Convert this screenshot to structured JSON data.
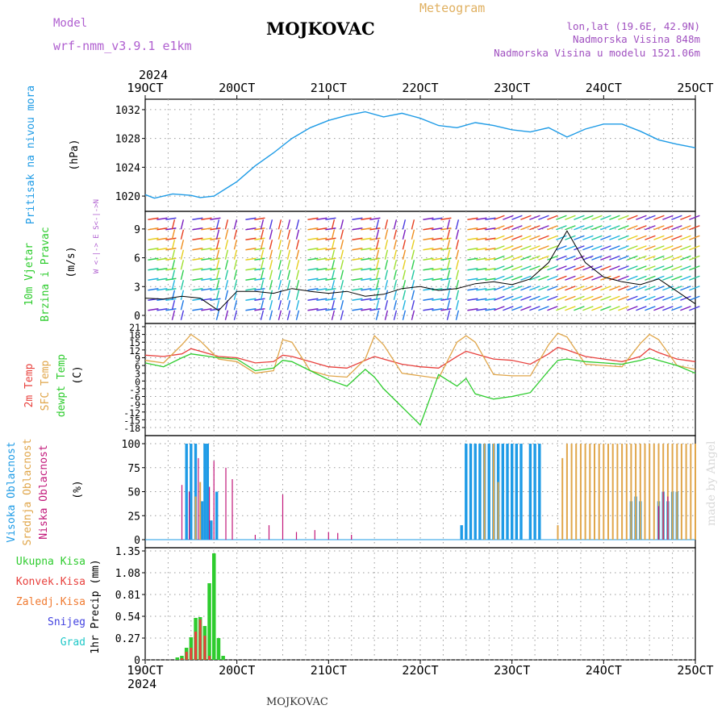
{
  "header": {
    "model_label": "Model",
    "model_value": "wrf-nmm_v3.9.1 e1km",
    "station": "MOJKOVAC",
    "subtitle": "Meteogram",
    "coords": "lon,lat (19.6E, 42.9N)",
    "altitude": "Nadmorska Visina 848m",
    "model_altitude": "Nadmorska Visina u modelu 1521.06m",
    "footer_station": "MOJKOVAC",
    "watermark": "made by Angel",
    "year_top": "2024",
    "year_bottom": "2024"
  },
  "time_axis": {
    "labels": [
      "19OCT",
      "20OCT",
      "21OCT",
      "22OCT",
      "23OCT",
      "24OCT",
      "25OCT"
    ],
    "range_days": [
      0,
      6
    ]
  },
  "colors": {
    "pressure": "#1e9be6",
    "temp2m": "#e8403c",
    "sfc": "#e0a64a",
    "dewpt": "#2ecc2e",
    "high_cloud": "#1e9be6",
    "mid_cloud": "#e0a64a",
    "low_cloud": "#c2177a",
    "rain": "#2ecc2e",
    "conv": "#e8403c",
    "frz": "#f07a30",
    "snow": "#4040e0",
    "hail": "#20c8c8",
    "model_label": "#b060d0",
    "header_right": "#a050c0"
  },
  "chart_data": [
    {
      "type": "line",
      "panel": "pressure",
      "ylabel_a": "Pritisak na nivou mora",
      "ylabel_b": "(hPa)",
      "yticks": [
        1020,
        1024,
        1028,
        1032
      ],
      "ylim": [
        1019,
        1033
      ],
      "series": [
        {
          "x": [
            0,
            0.1,
            0.3,
            0.5,
            0.6,
            0.75,
            0.9,
            1.0,
            1.2,
            1.4,
            1.6,
            1.8,
            2.0,
            2.2,
            2.4,
            2.6,
            2.8,
            3.0,
            3.2,
            3.4,
            3.6,
            3.8,
            4.0,
            4.2,
            4.4,
            4.6,
            4.8,
            5.0,
            5.2,
            5.4,
            5.6,
            5.8,
            6.0
          ],
          "values": [
            1020.2,
            1019.7,
            1020.3,
            1020.1,
            1019.8,
            1020.0,
            1021.2,
            1022.0,
            1024.2,
            1026.0,
            1028.0,
            1029.5,
            1030.5,
            1031.2,
            1031.7,
            1031.0,
            1031.5,
            1030.8,
            1029.8,
            1029.5,
            1030.2,
            1029.8,
            1029.2,
            1028.9,
            1029.5,
            1028.2,
            1029.3,
            1030.0,
            1030.0,
            1029.0,
            1027.8,
            1027.2,
            1026.7
          ]
        }
      ]
    },
    {
      "type": "line",
      "panel": "wind",
      "ylabel_a": "10m Vjetar",
      "ylabel_b": "Brzina i Pravac",
      "ylabel_c": "(m/s)",
      "compass": "W <-|-> E  S<-|->N",
      "yticks": [
        0,
        3,
        6,
        9
      ],
      "ylim": [
        0,
        10.5
      ],
      "series": [
        {
          "x": [
            0,
            0.2,
            0.4,
            0.6,
            0.8,
            1.0,
            1.2,
            1.4,
            1.6,
            1.8,
            2.0,
            2.2,
            2.4,
            2.6,
            2.8,
            3.0,
            3.2,
            3.4,
            3.6,
            3.8,
            4.0,
            4.2,
            4.4,
            4.6,
            4.8,
            5.0,
            5.2,
            5.4,
            5.6,
            5.8,
            6.0
          ],
          "values": [
            1.8,
            1.7,
            2.0,
            1.8,
            0.5,
            2.5,
            2.5,
            2.3,
            2.8,
            2.5,
            2.3,
            2.5,
            2.0,
            2.2,
            2.8,
            3.0,
            2.6,
            2.8,
            3.3,
            3.5,
            3.2,
            3.8,
            5.5,
            8.8,
            5.5,
            4.0,
            3.5,
            3.2,
            3.8,
            2.5,
            1.2
          ]
        }
      ]
    },
    {
      "type": "line",
      "panel": "temperature",
      "ylabel_a": "2m Temp",
      "ylabel_b": "SFC Temp",
      "ylabel_c": "dewpt Temp",
      "ylabel_d": "(C)",
      "yticks": [
        -18,
        -15,
        -12,
        -9,
        -6,
        -3,
        0,
        3,
        6,
        9,
        12,
        15,
        18,
        21
      ],
      "ylim": [
        -18,
        21
      ],
      "x": [
        0,
        0.2,
        0.4,
        0.5,
        0.6,
        0.8,
        1.0,
        1.2,
        1.4,
        1.5,
        1.6,
        1.8,
        2.0,
        2.2,
        2.4,
        2.5,
        2.6,
        2.8,
        3.0,
        3.2,
        3.4,
        3.5,
        3.6,
        3.8,
        4.0,
        4.2,
        4.4,
        4.5,
        4.6,
        4.8,
        5.0,
        5.2,
        5.4,
        5.5,
        5.6,
        5.8,
        6.0
      ],
      "series": [
        {
          "name": "2m Temp",
          "values": [
            10,
            9.5,
            10.5,
            12.5,
            11.5,
            9.5,
            9.0,
            7.0,
            7.5,
            10.0,
            9.5,
            7.5,
            5.5,
            5.0,
            8.0,
            9.5,
            8.5,
            6.5,
            5.5,
            5.0,
            9.5,
            11.5,
            10.5,
            8.5,
            8.0,
            6.5,
            10.5,
            13.0,
            12.0,
            9.5,
            8.5,
            7.5,
            9.5,
            12.5,
            11.0,
            8.5,
            7.5
          ]
        },
        {
          "name": "SFC Temp",
          "values": [
            8.0,
            7.0,
            14.0,
            18.0,
            15.5,
            8.5,
            7.5,
            3.0,
            4.0,
            16.0,
            15.0,
            4.0,
            2.0,
            1.5,
            8.5,
            17.5,
            14.0,
            3.0,
            2.0,
            1.0,
            15.0,
            17.5,
            15.0,
            2.5,
            2.0,
            2.0,
            14.0,
            18.5,
            17.0,
            6.5,
            6.0,
            5.5,
            14.5,
            18.0,
            16.0,
            6.0,
            4.5
          ]
        },
        {
          "name": "dewpt Temp",
          "values": [
            7.0,
            5.5,
            9.0,
            10.5,
            10.0,
            9.0,
            8.5,
            4.0,
            5.0,
            8.0,
            7.5,
            4.0,
            0.5,
            -2.0,
            4.5,
            1.5,
            -3.0,
            -10.0,
            -17.0,
            2.5,
            -2.0,
            1.0,
            -5.0,
            -7.0,
            -6.0,
            -4.5,
            4.0,
            8.0,
            8.5,
            7.5,
            7.0,
            6.5,
            8.0,
            9.0,
            8.0,
            6.0,
            3.0
          ]
        }
      ]
    },
    {
      "type": "bar",
      "panel": "clouds",
      "ylabel_a": "Visoka Oblacnost",
      "ylabel_b": "Srednja Oblacnost",
      "ylabel_c": "Niska Oblacnost",
      "ylabel_d": "(%)",
      "yticks": [
        0,
        25,
        50,
        75,
        100
      ],
      "ylim": [
        0,
        100
      ],
      "series": [
        {
          "name": "Visoka Oblacnost",
          "x": [
            0.45,
            0.5,
            0.55,
            0.62,
            0.65,
            0.68,
            0.72,
            0.78,
            3.45,
            3.5,
            3.55,
            3.6,
            3.65,
            3.7,
            3.75,
            3.8,
            3.85,
            3.9,
            3.95,
            4.0,
            4.05,
            4.1,
            4.2,
            4.25,
            4.3,
            5.3,
            5.35,
            5.4,
            5.6,
            5.65,
            5.7,
            5.75,
            5.8
          ],
          "values": [
            100,
            100,
            100,
            40,
            100,
            100,
            20,
            50,
            15,
            100,
            100,
            100,
            100,
            100,
            100,
            100,
            100,
            100,
            100,
            100,
            100,
            100,
            100,
            100,
            100,
            40,
            45,
            40,
            40,
            50,
            40,
            50,
            50
          ]
        },
        {
          "name": "Srednja Oblacnost",
          "x": [
            0.55,
            0.6,
            3.7,
            3.8,
            3.85,
            4.5,
            4.55,
            4.6,
            4.65,
            4.7,
            4.75,
            4.8,
            4.85,
            4.9,
            4.95,
            5.0,
            5.05,
            5.1,
            5.15,
            5.2,
            5.25,
            5.3,
            5.35,
            5.4,
            5.45,
            5.5,
            5.55,
            5.6,
            5.65,
            5.7,
            5.75,
            5.8,
            5.85,
            5.9,
            5.95,
            6.0
          ],
          "values": [
            45,
            60,
            100,
            100,
            60,
            15,
            85,
            100,
            100,
            100,
            100,
            100,
            100,
            100,
            100,
            100,
            100,
            100,
            100,
            100,
            100,
            100,
            100,
            100,
            100,
            100,
            100,
            100,
            100,
            100,
            100,
            100,
            100,
            100,
            100,
            100
          ]
        },
        {
          "name": "Niska Oblacnost",
          "x": [
            0.4,
            0.48,
            0.58,
            0.7,
            0.75,
            0.88,
            0.95,
            1.2,
            1.35,
            1.5,
            1.65,
            1.85,
            2.0,
            2.1,
            2.25,
            5.6,
            5.65,
            5.7
          ],
          "values": [
            57,
            50,
            85,
            55,
            82,
            75,
            63,
            5,
            15,
            47,
            8,
            10,
            8,
            7,
            5,
            35,
            50,
            45
          ]
        }
      ]
    },
    {
      "type": "bar",
      "panel": "precip",
      "ylabel_a": "1hr Precip (mm)",
      "legend": [
        "Ukupna Kisa",
        "Konvek.Kisa",
        "Zaledj.Kisa",
        "Snijeg",
        "Grad"
      ],
      "yticks": [
        0,
        0.27,
        0.54,
        0.81,
        1.08,
        1.35
      ],
      "ylim": [
        0,
        1.35
      ],
      "series": [
        {
          "name": "Ukupna Kisa",
          "x": [
            0.35,
            0.4,
            0.45,
            0.5,
            0.55,
            0.6,
            0.65,
            0.7,
            0.75,
            0.8,
            0.85
          ],
          "values": [
            0.03,
            0.05,
            0.15,
            0.28,
            0.52,
            0.53,
            0.42,
            0.95,
            1.32,
            0.27,
            0.05
          ]
        },
        {
          "name": "Konvek.Kisa",
          "x": [
            0.4,
            0.45,
            0.5,
            0.55,
            0.6,
            0.65,
            0.7
          ],
          "values": [
            0.02,
            0.1,
            0.15,
            0.35,
            0.5,
            0.3,
            0.05
          ]
        }
      ]
    }
  ]
}
